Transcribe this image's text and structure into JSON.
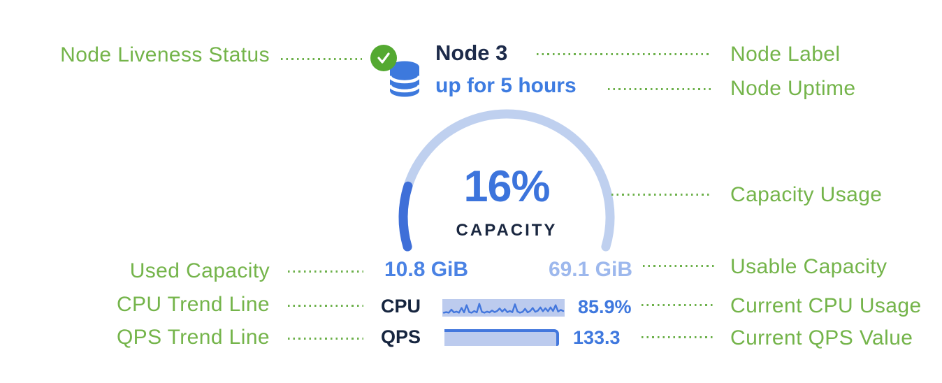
{
  "annotations": {
    "left": [
      {
        "label": "Node Liveness Status"
      },
      {
        "label": "Used Capacity"
      },
      {
        "label": "CPU Trend Line"
      },
      {
        "label": "QPS Trend Line"
      }
    ],
    "right": [
      {
        "label": "Node Label"
      },
      {
        "label": "Node Uptime"
      },
      {
        "label": "Capacity Usage"
      },
      {
        "label": "Usable Capacity"
      },
      {
        "label": "Current CPU Usage"
      },
      {
        "label": "Current QPS Value"
      }
    ]
  },
  "node_card": {
    "name": "Node 3",
    "uptime": "up for 5 hours",
    "liveness_icon": "green-check-circle",
    "node_icon": "database-cylinders",
    "gauge": {
      "percent": 16,
      "percent_label": "16%",
      "caption": "CAPACITY",
      "start_angle_deg": 163.5,
      "sweep_deg": 213
    },
    "used_capacity": "10.8 GiB",
    "usable_capacity": "69.1 GiB",
    "cpu": {
      "label": "CPU",
      "value": "85.9%",
      "trend": [
        0.18,
        0.22,
        0.18,
        0.4,
        0.2,
        0.26,
        0.18,
        0.52,
        0.2,
        0.72,
        0.22,
        0.18,
        0.3,
        0.2,
        0.82,
        0.24,
        0.18,
        0.26,
        0.2,
        0.34,
        0.22,
        0.3,
        0.48,
        0.26,
        0.44,
        0.22,
        0.3,
        0.22,
        0.78,
        0.26,
        0.18,
        0.24,
        0.46,
        0.2,
        0.3,
        0.52,
        0.24,
        0.32,
        0.56,
        0.28,
        0.5,
        0.28,
        0.56,
        0.3,
        0.72,
        0.26,
        0.38,
        0.3
      ]
    },
    "qps": {
      "label": "QPS",
      "value": "133.3",
      "trend_style": "flat-max-bar"
    }
  },
  "colors": {
    "annotation_green": "#74b44a",
    "leader_green": "#6cb04a",
    "liveness_green": "#54a931",
    "node_name_navy": "#1d2b4a",
    "uptime_blue": "#3e7ce1",
    "icon_blue": "#3d79dd",
    "gauge_track": "#bfd0ef",
    "gauge_fill": "#3f6fd8",
    "percent_blue": "#3c74dc",
    "caption_navy": "#1a2740",
    "used_blue": "#4a82e4",
    "usable_blue": "#9db8ed",
    "metric_label_navy": "#16253f",
    "metric_value_blue": "#3f78de",
    "trend_bg": "#bccbee",
    "trend_line": "#4377dd"
  }
}
